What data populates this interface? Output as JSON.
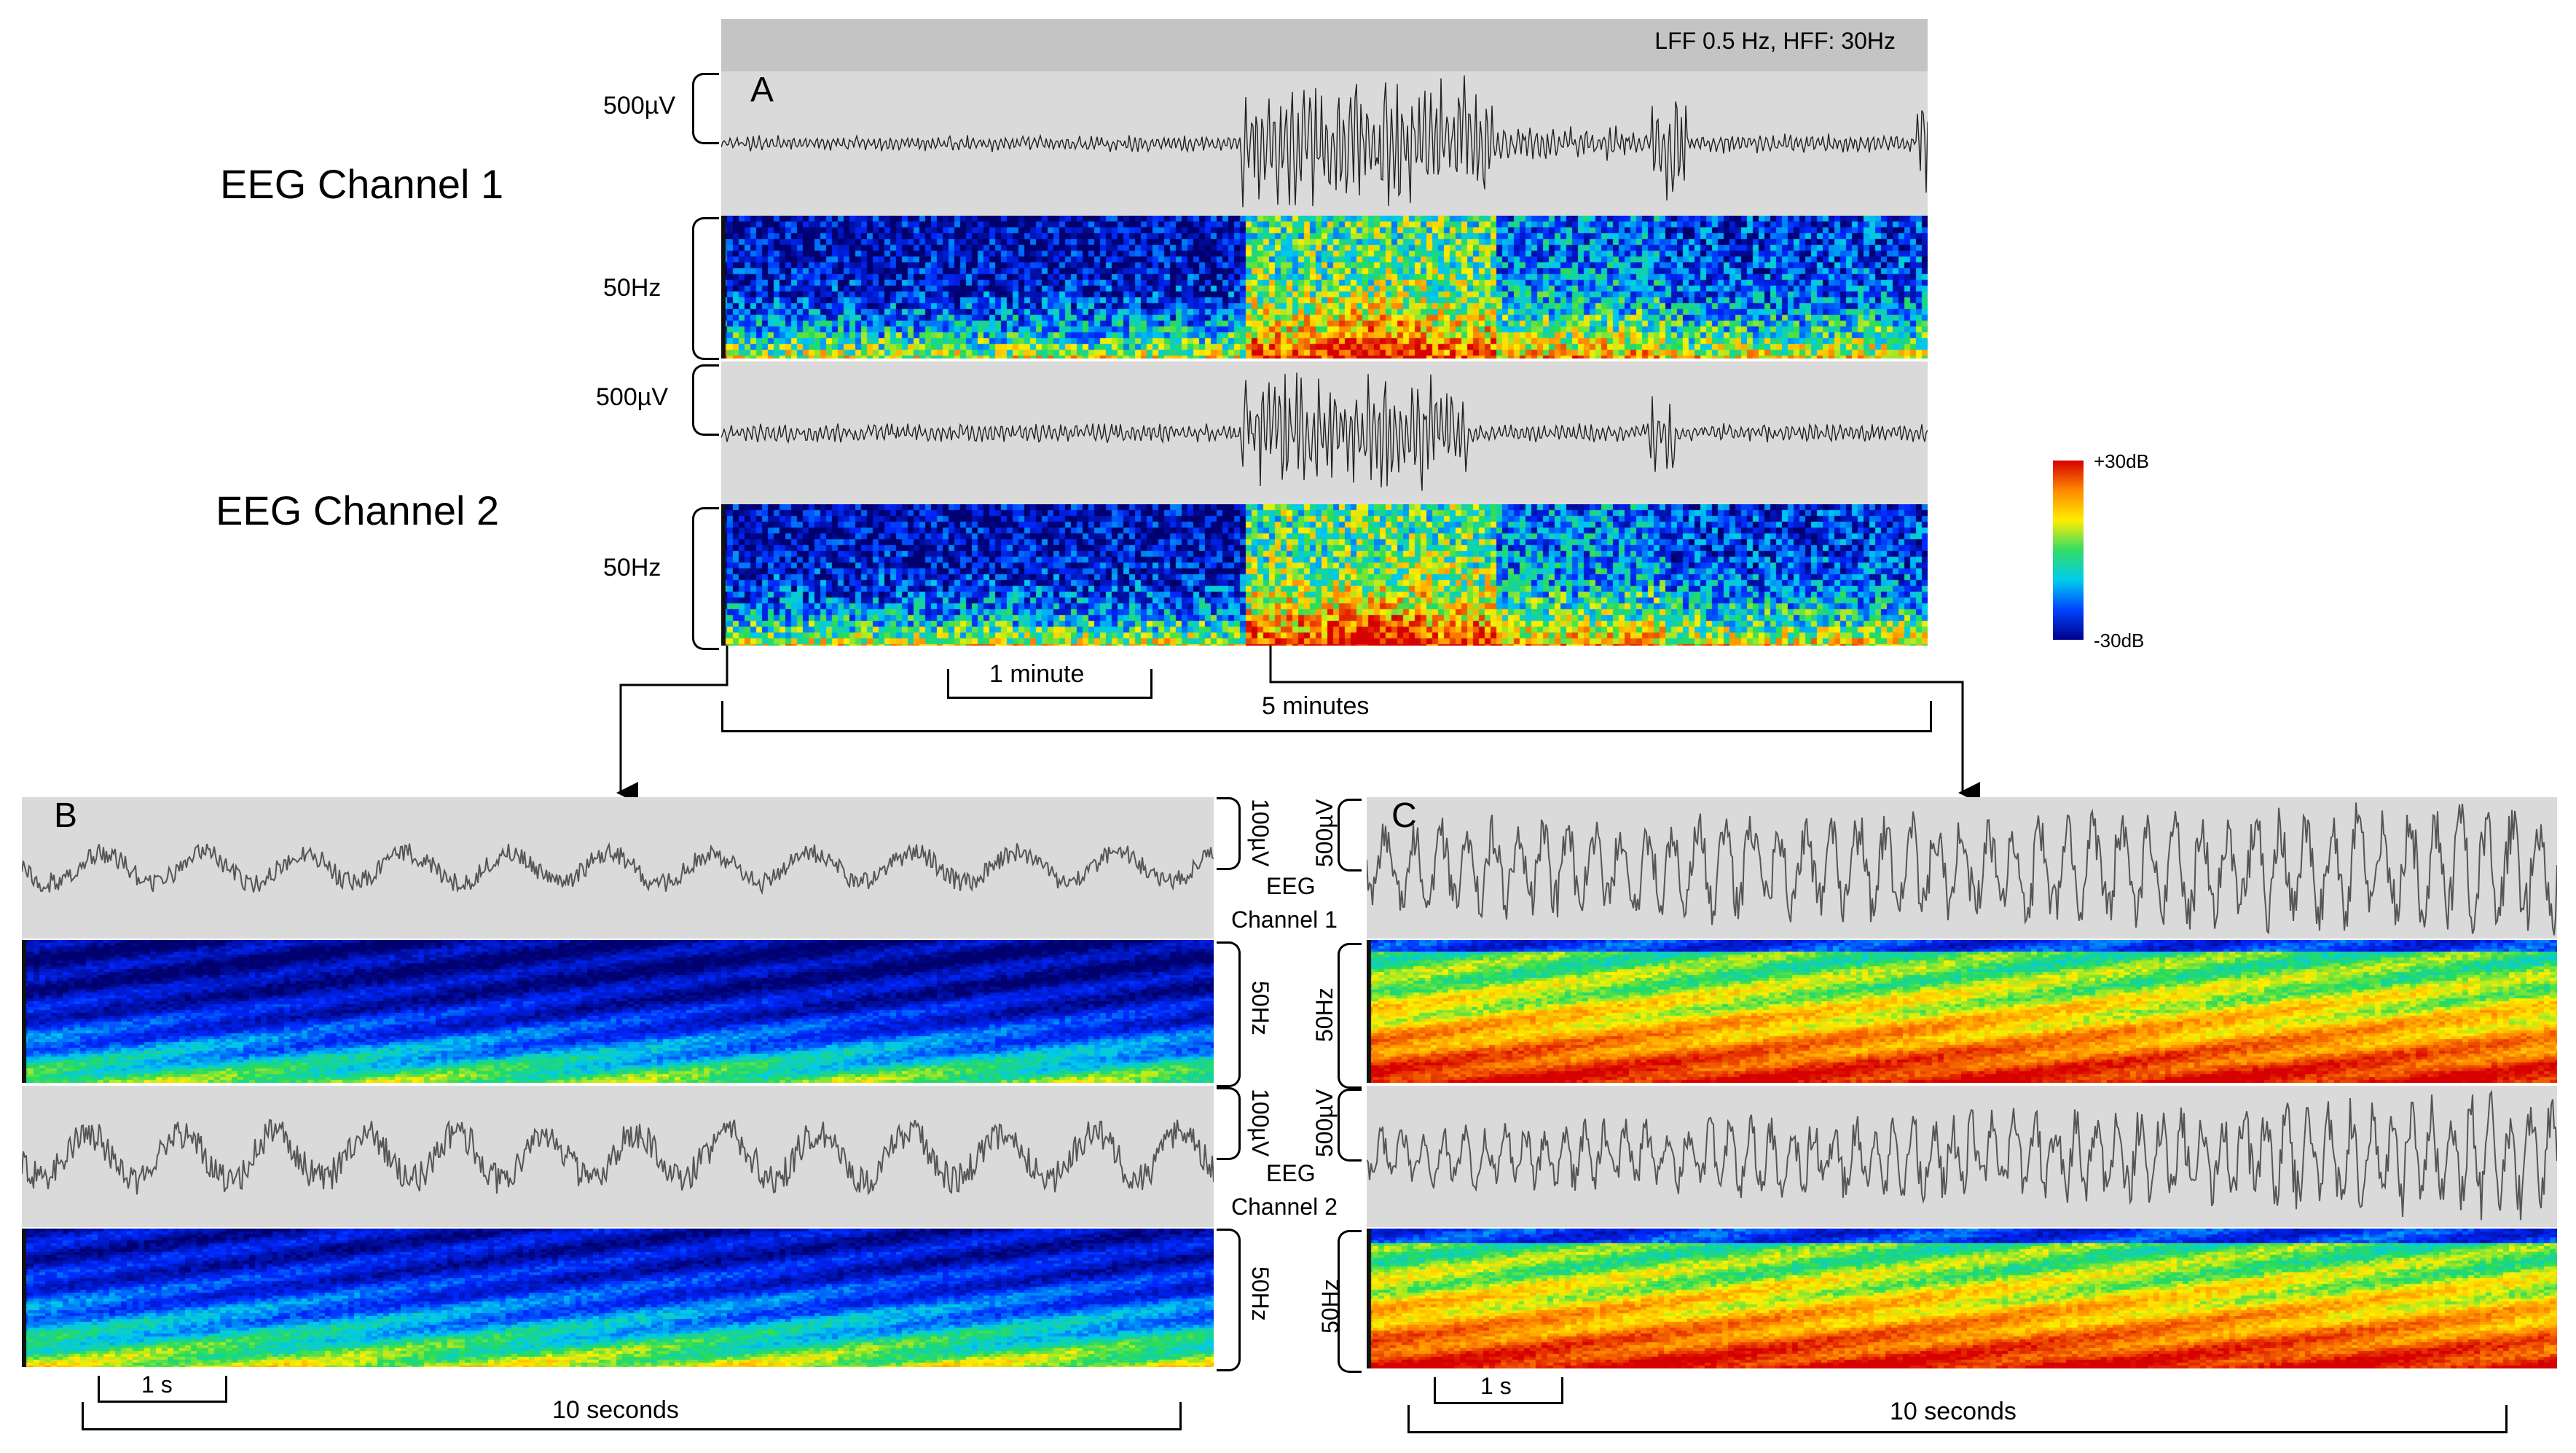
{
  "filter_banner": "LFF 0.5 Hz, HFF: 30Hz",
  "panel_a": {
    "letter": "A",
    "channel1_title": "EEG Channel 1",
    "channel2_title": "EEG Channel 2",
    "ch1_amplitude": "500µV",
    "ch1_frequency": "50Hz",
    "ch2_amplitude": "500µV",
    "ch2_frequency": "50Hz",
    "scale_short": "1 minute",
    "scale_long": "5 minutes"
  },
  "colorbar": {
    "top_label": "+30dB",
    "bottom_label": "-30dB",
    "colors": [
      "#d40000",
      "#ff8800",
      "#ffee00",
      "#33dd66",
      "#00ccee",
      "#0044ff",
      "#00008a"
    ]
  },
  "panel_b": {
    "letter": "B",
    "amplitude_1": "100µV",
    "frequency_1": "50Hz",
    "amplitude_2": "100µV",
    "frequency_2": "50Hz",
    "channel1_label": [
      "EEG",
      "Channel 1"
    ],
    "channel2_label": [
      "EEG",
      "Channel 2"
    ],
    "scale_short": "1 s",
    "scale_long": "10 seconds"
  },
  "panel_c": {
    "letter": "C",
    "amplitude_1": "500µV",
    "frequency_1": "50Hz",
    "amplitude_2": "500µV",
    "frequency_2": "50Hz",
    "scale_short": "1 s",
    "scale_long": "10 seconds"
  }
}
